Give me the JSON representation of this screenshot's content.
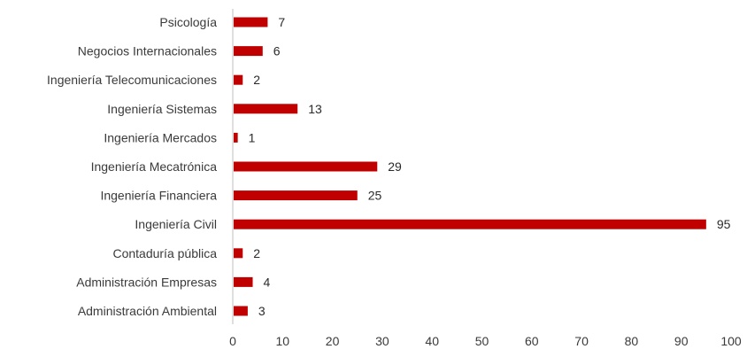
{
  "chart_data": {
    "type": "bar",
    "orientation": "horizontal",
    "categories": [
      "Psicología",
      "Negocios Internacionales",
      "Ingeniería Telecomunicaciones",
      "Ingeniería Sistemas",
      "Ingeniería Mercados",
      "Ingeniería Mecatrónica",
      "Ingeniería Financiera",
      "Ingeniería Civil",
      "Contaduría pública",
      "Administración Empresas",
      "Administración Ambiental"
    ],
    "values": [
      7,
      6,
      2,
      13,
      1,
      29,
      25,
      95,
      2,
      4,
      3
    ],
    "value_labels": [
      "7",
      "6",
      "2",
      "13",
      "1",
      "29",
      "25",
      "95",
      "2",
      "4",
      "3"
    ],
    "xlim": [
      0,
      100
    ],
    "x_ticks": [
      "0",
      "10",
      "20",
      "30",
      "40",
      "50",
      "60",
      "70",
      "80",
      "90",
      "100"
    ],
    "grid": false,
    "legend": "none",
    "bar_color": "#c00000"
  }
}
